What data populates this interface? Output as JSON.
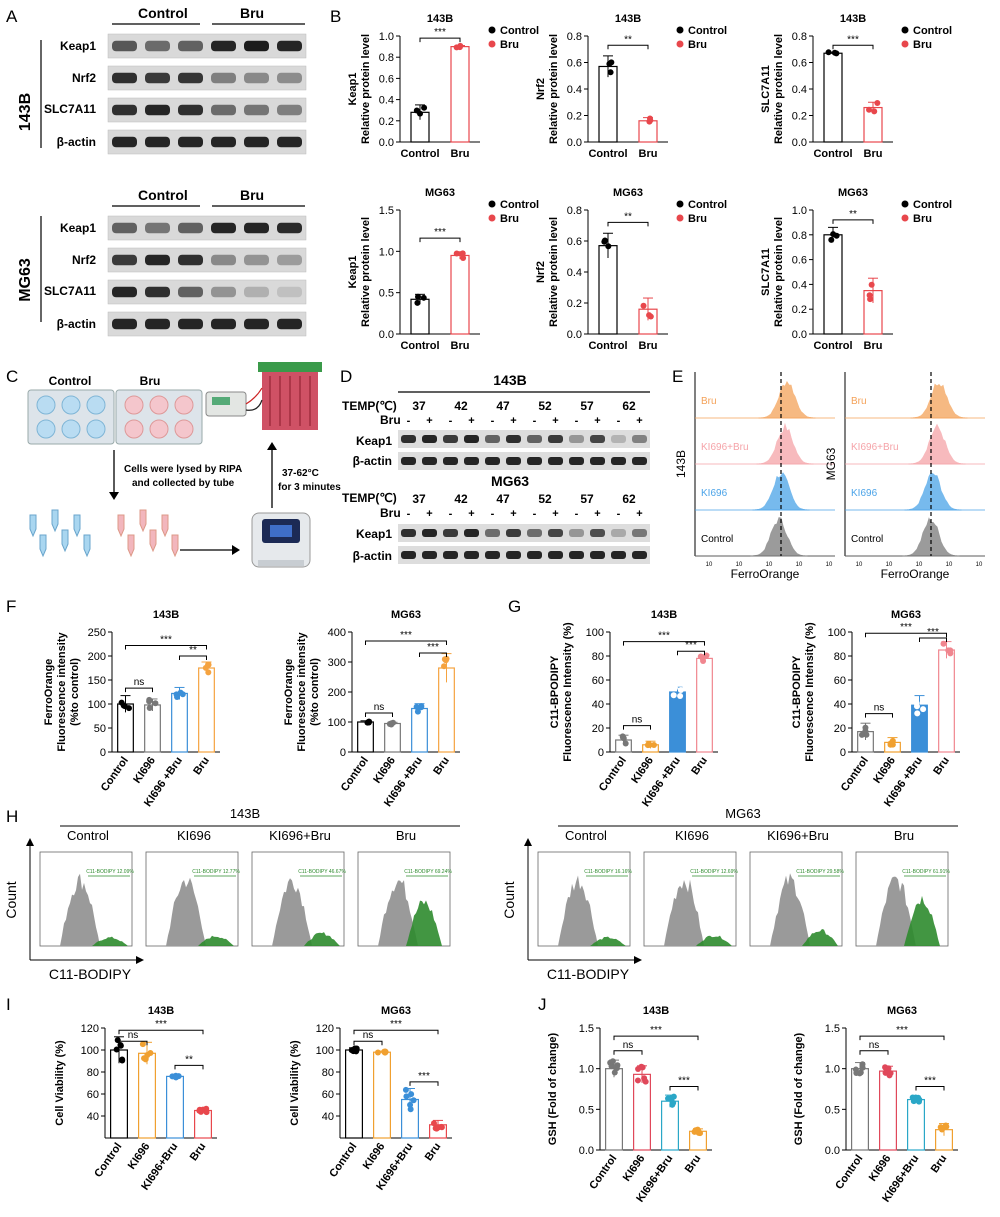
{
  "panel_letters": [
    "A",
    "B",
    "C",
    "D",
    "E",
    "F",
    "G",
    "H",
    "I",
    "J"
  ],
  "groups": {
    "control": "Control",
    "bru": "Bru",
    "ki696": "KI696",
    "ki696_bru": "KI696+Bru",
    "ki696_bru_spaced": "KI696 +Bru"
  },
  "cells": {
    "c143b": "143B",
    "cmg63": "MG63"
  },
  "proteins": {
    "keap1": "Keap1",
    "nrf2": "Nrf2",
    "slc7a11": "SLC7A11",
    "bactin": "β-actin"
  },
  "stars": {
    "s3": "***",
    "s2": "**",
    "ns": "ns"
  },
  "ylabels": {
    "relative": "Relative protein level",
    "ferro_a": "FerroOrange",
    "ferro_b": "Fluorescence intensity",
    "ferro_c": "(%to control)",
    "c11_a": "C11-BPODIPY",
    "c11_b": "Fluorescence Intensity (%)",
    "viab": "Cell Viability (%)",
    "gsh": "GSH (Fold of change)"
  },
  "panel_c": {
    "lyse_1": "Cells were lysed by RIPA",
    "lyse_2": "and  collected by tube",
    "heat_1": "37-62°C",
    "heat_2": "for 3 minutes"
  },
  "panel_d": {
    "temp_label": "TEMP(℃)",
    "bru_label": "Bru",
    "temps": [
      "37",
      "42",
      "47",
      "52",
      "57",
      "62"
    ],
    "minus": "-",
    "plus": "+"
  },
  "panel_e": {
    "xlabel": "FerroOrange",
    "rows": [
      "Bru",
      "KI696+Bru",
      "KI696",
      "Control"
    ],
    "row_colors": [
      "#f4a259",
      "#f5a3a8",
      "#4aa3e8",
      "#7a7a7a"
    ],
    "tick": "10"
  },
  "panel_h": {
    "xlabel": "C11-BODIPY",
    "ylabel": "Count",
    "gate_prefix": "C11-BODIPY"
  },
  "colors": {
    "control": "#000000",
    "bru_red": "#e8474c",
    "ki696_gray": "#777777",
    "ki696_orange": "#f0a030",
    "ki696_bru_blue": "#3b8fd8",
    "bru_orange": "#f5a340",
    "c11_pink": "#f0868f",
    "ki696_red": "#e0485a",
    "ki696_bru_teal": "#2aa7c7",
    "green": "#2e8b2e"
  },
  "chart_data": [
    {
      "id": "B1",
      "type": "bar",
      "cell": "143B",
      "protein": "Keap1",
      "ylabel": "Relative protein level",
      "categories": [
        "Control",
        "Bru"
      ],
      "values": [
        0.28,
        0.9
      ],
      "ylim": [
        0,
        1.0
      ],
      "sig": "***"
    },
    {
      "id": "B2",
      "type": "bar",
      "cell": "143B",
      "protein": "Nrf2",
      "ylabel": "Relative protein level",
      "categories": [
        "Control",
        "Bru"
      ],
      "values": [
        0.57,
        0.16
      ],
      "ylim": [
        0,
        0.8
      ],
      "sig": "**"
    },
    {
      "id": "B3",
      "type": "bar",
      "cell": "143B",
      "protein": "SLC7A11",
      "ylabel": "Relative protein level",
      "categories": [
        "Control",
        "Bru"
      ],
      "values": [
        0.67,
        0.26
      ],
      "ylim": [
        0,
        0.8
      ],
      "sig": "***"
    },
    {
      "id": "B4",
      "type": "bar",
      "cell": "MG63",
      "protein": "Keap1",
      "ylabel": "Relative protein level",
      "categories": [
        "Control",
        "Bru"
      ],
      "values": [
        0.42,
        0.95
      ],
      "ylim": [
        0,
        1.5
      ],
      "sig": "***"
    },
    {
      "id": "B5",
      "type": "bar",
      "cell": "MG63",
      "protein": "Nrf2",
      "ylabel": "Relative protein level",
      "categories": [
        "Control",
        "Bru"
      ],
      "values": [
        0.57,
        0.16
      ],
      "ylim": [
        0,
        0.8
      ],
      "sig": "**"
    },
    {
      "id": "B6",
      "type": "bar",
      "cell": "MG63",
      "protein": "SLC7A11",
      "ylabel": "Relative protein level",
      "categories": [
        "Control",
        "Bru"
      ],
      "values": [
        0.8,
        0.35
      ],
      "ylim": [
        0,
        1.0
      ],
      "sig": "**"
    },
    {
      "id": "F1",
      "type": "bar",
      "cell": "143B",
      "ylabel": "FerroOrange Fluorescence intensity (%to control)",
      "categories": [
        "Control",
        "KI696",
        "KI696 +Bru",
        "Bru"
      ],
      "values": [
        100,
        98,
        122,
        175
      ],
      "ylim": [
        0,
        250
      ]
    },
    {
      "id": "F2",
      "type": "bar",
      "cell": "MG63",
      "ylabel": "FerroOrange Fluorescence intensity (%to control)",
      "categories": [
        "Control",
        "KI696",
        "KI696 +Bru",
        "Bru"
      ],
      "values": [
        100,
        95,
        145,
        280
      ],
      "ylim": [
        0,
        400
      ]
    },
    {
      "id": "G1",
      "type": "bar",
      "cell": "143B",
      "ylabel": "C11-BPODIPY Fluorescence Intensity (%)",
      "categories": [
        "Control",
        "KI696",
        "KI696 +Bru",
        "Bru"
      ],
      "values": [
        10,
        6,
        50,
        78
      ],
      "ylim": [
        0,
        100
      ]
    },
    {
      "id": "G2",
      "type": "bar",
      "cell": "MG63",
      "ylabel": "C11-BPODIPY Fluorescence Intensity (%)",
      "categories": [
        "Control",
        "KI696",
        "KI696 +Bru",
        "Bru"
      ],
      "values": [
        17,
        8,
        39,
        85
      ],
      "ylim": [
        0,
        100
      ]
    },
    {
      "id": "I1",
      "type": "bar",
      "cell": "143B",
      "ylabel": "Cell Viability (%)",
      "categories": [
        "Control",
        "KI696",
        "KI696+Bru",
        "Bru"
      ],
      "values": [
        100,
        97,
        76,
        45
      ],
      "ylim": [
        20,
        120
      ]
    },
    {
      "id": "I2",
      "type": "bar",
      "cell": "MG63",
      "ylabel": "Cell Viability (%)",
      "categories": [
        "Control",
        "KI696",
        "KI696+Bru",
        "Bru"
      ],
      "values": [
        100,
        98,
        55,
        32
      ],
      "ylim": [
        20,
        120
      ]
    },
    {
      "id": "J1",
      "type": "bar",
      "cell": "143B",
      "ylabel": "GSH (Fold of change)",
      "categories": [
        "Control",
        "KI696",
        "KI696+Bru",
        "Bru"
      ],
      "values": [
        1.0,
        0.93,
        0.6,
        0.23
      ],
      "ylim": [
        0,
        1.5
      ]
    },
    {
      "id": "J2",
      "type": "bar",
      "cell": "MG63",
      "ylabel": "GSH (Fold of change)",
      "categories": [
        "Control",
        "KI696",
        "KI696+Bru",
        "Bru"
      ],
      "values": [
        1.0,
        0.97,
        0.62,
        0.25
      ],
      "ylim": [
        0,
        1.5
      ]
    }
  ]
}
